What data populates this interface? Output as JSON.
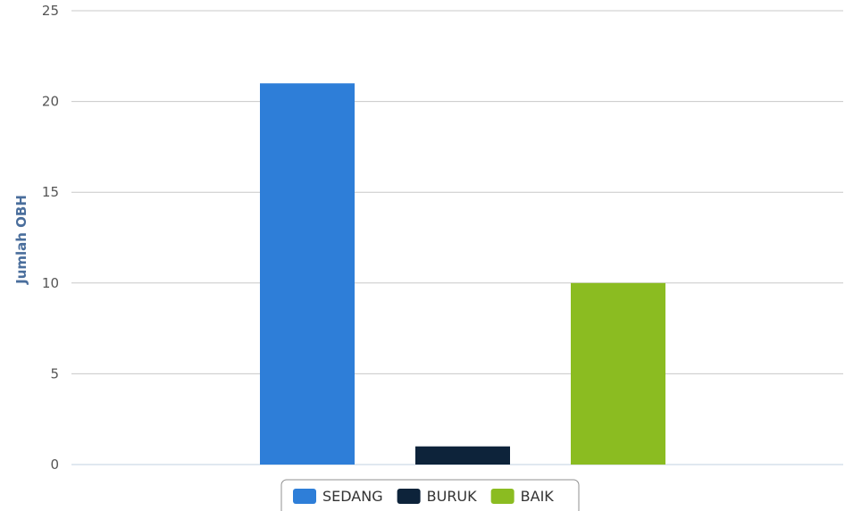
{
  "chart_data": {
    "type": "bar",
    "title": "",
    "xlabel": "",
    "ylabel": "Jumlah OBH",
    "ylim": [
      0,
      25
    ],
    "yticks": [
      0,
      5,
      10,
      15,
      20,
      25
    ],
    "grid": true,
    "legend_position": "bottom-center",
    "series": [
      {
        "name": "SEDANG",
        "value": 21,
        "color": "#2e7ed8"
      },
      {
        "name": "BURUK",
        "value": 1,
        "color": "#0d233a"
      },
      {
        "name": "BAIK",
        "value": 10,
        "color": "#8bbc21"
      }
    ]
  }
}
